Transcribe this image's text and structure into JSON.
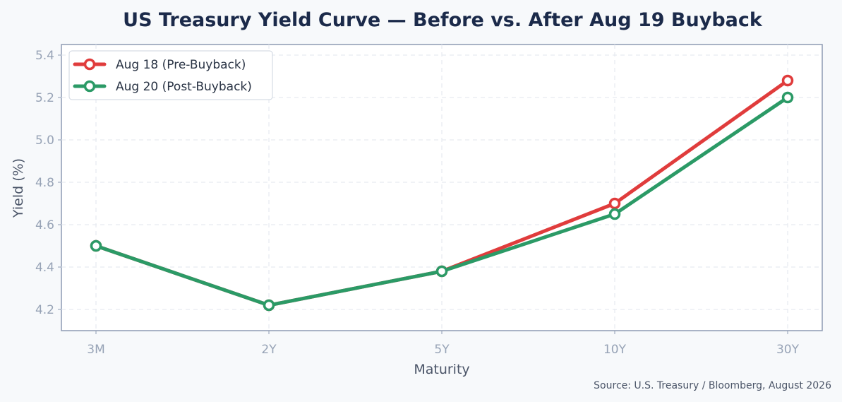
{
  "chart_data": {
    "type": "line",
    "title": "US Treasury Yield Curve — Before vs. After Aug 19 Buyback",
    "xlabel": "Maturity",
    "ylabel": "Yield (%)",
    "categories": [
      "3M",
      "2Y",
      "5Y",
      "10Y",
      "30Y"
    ],
    "ylim": [
      4.1,
      5.45
    ],
    "yticks": [
      4.2,
      4.4,
      4.6,
      4.8,
      5.0,
      5.2,
      5.4
    ],
    "ytick_labels": [
      "4.2",
      "4.4",
      "4.6",
      "4.8",
      "5.0",
      "5.2",
      "5.4"
    ],
    "grid": true,
    "legend_position": "top-left",
    "series": [
      {
        "name": "Aug 18 (Pre-Buyback)",
        "values": [
          4.5,
          4.22,
          4.38,
          4.7,
          5.28
        ],
        "color": "#e03c3c"
      },
      {
        "name": "Aug 20 (Post-Buyback)",
        "values": [
          4.5,
          4.22,
          4.38,
          4.65,
          5.2
        ],
        "color": "#2b9a66"
      }
    ],
    "source": "Source: U.S. Treasury / Bloomberg, August 2026"
  }
}
